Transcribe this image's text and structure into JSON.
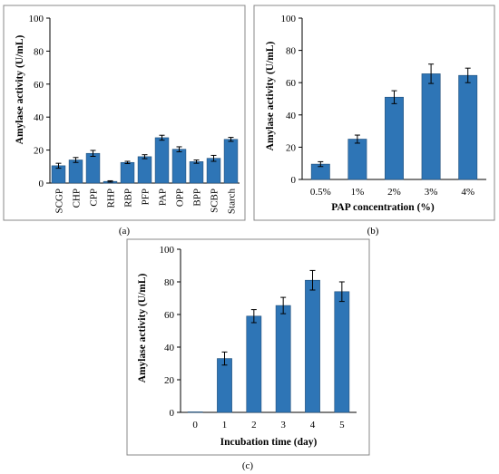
{
  "chart_data": [
    {
      "id": "a",
      "type": "bar",
      "panel_label": "(a)",
      "xlabel": "",
      "ylabel": "Amylase activity (U/mL)",
      "ylim": [
        0,
        100
      ],
      "yticks": [
        0,
        20,
        40,
        60,
        80,
        100
      ],
      "categories": [
        "SCGP",
        "CHP",
        "CPP",
        "RHP",
        "RBP",
        "PFP",
        "PAP",
        "OPP",
        "BPP",
        "SCBP",
        "Starch"
      ],
      "values": [
        10.5,
        14,
        18,
        1,
        12.5,
        16,
        27.5,
        20.5,
        13,
        15,
        26.5
      ],
      "errors": [
        1.5,
        1.5,
        1.8,
        0.4,
        0.7,
        1.2,
        1.5,
        1.5,
        1.0,
        1.8,
        1.2
      ],
      "bar_color": "#2E75B6",
      "grid": false
    },
    {
      "id": "b",
      "type": "bar",
      "panel_label": "(b)",
      "xlabel": "PAP concentration (%)",
      "ylabel": "Amylase activity (U/mL)",
      "ylim": [
        0,
        100
      ],
      "yticks": [
        0,
        20,
        40,
        60,
        80,
        100
      ],
      "categories": [
        "0.5%",
        "1%",
        "2%",
        "3%",
        "4%"
      ],
      "values": [
        9.5,
        25,
        51,
        65.5,
        64.5
      ],
      "errors": [
        1.5,
        2.5,
        4,
        6,
        4.5
      ],
      "bar_color": "#2E75B6",
      "grid": false
    },
    {
      "id": "c",
      "type": "bar",
      "panel_label": "(c)",
      "xlabel": "Incubation time (day)",
      "ylabel": "Amylase activity (U/mL)",
      "ylim": [
        0,
        100
      ],
      "yticks": [
        0,
        20,
        40,
        60,
        80,
        100
      ],
      "categories": [
        "0",
        "1",
        "2",
        "3",
        "4",
        "5"
      ],
      "values": [
        0.3,
        33,
        59,
        65.5,
        81,
        74
      ],
      "errors": [
        0,
        4,
        4,
        5,
        6,
        6
      ],
      "bar_color": "#2E75B6",
      "grid": false
    }
  ]
}
